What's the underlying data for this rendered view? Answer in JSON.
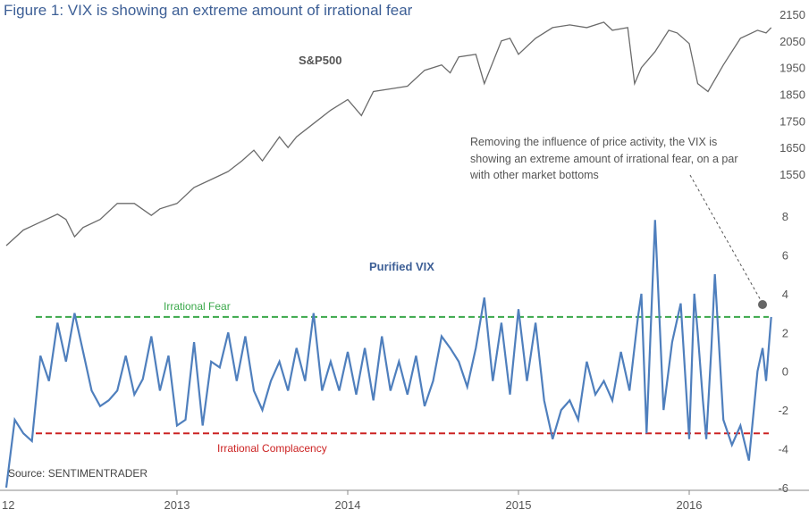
{
  "title": "Figure 1: VIX is showing an extreme amount of irrational fear",
  "source": "Source: SENTIMENTRADER",
  "annotation": "Removing the influence of price activity, the VIX is showing an extreme amount of irrational fear, on a par with other market bottoms",
  "colors": {
    "title": "#3d5f96",
    "spx_line": "#6b6b6b",
    "vix_line": "#4f7fbd",
    "fear_line": "#3aa84a",
    "complacency_line": "#cc2222",
    "marker": "#666666"
  },
  "chart_data": [
    {
      "type": "line",
      "name": "S&P500",
      "label": "S&P500",
      "y_axis_ticks": [
        "2150",
        "2050",
        "1950",
        "1850",
        "1750",
        "1650",
        "1550"
      ],
      "x": [
        2012.0,
        2012.1,
        2012.2,
        2012.3,
        2012.35,
        2012.4,
        2012.45,
        2012.55,
        2012.65,
        2012.75,
        2012.85,
        2012.9,
        2013.0,
        2013.1,
        2013.2,
        2013.3,
        2013.38,
        2013.45,
        2013.5,
        2013.6,
        2013.65,
        2013.7,
        2013.8,
        2013.9,
        2014.0,
        2014.08,
        2014.15,
        2014.25,
        2014.35,
        2014.45,
        2014.55,
        2014.6,
        2014.65,
        2014.75,
        2014.8,
        2014.9,
        2014.95,
        2015.0,
        2015.1,
        2015.2,
        2015.3,
        2015.4,
        2015.5,
        2015.55,
        2015.64,
        2015.68,
        2015.72,
        2015.8,
        2015.88,
        2015.93,
        2016.0,
        2016.05,
        2016.11,
        2016.2,
        2016.3,
        2016.4,
        2016.45,
        2016.48
      ],
      "values": [
        1282,
        1340,
        1370,
        1400,
        1380,
        1315,
        1350,
        1380,
        1440,
        1440,
        1395,
        1420,
        1440,
        1500,
        1530,
        1560,
        1600,
        1640,
        1600,
        1690,
        1650,
        1690,
        1740,
        1790,
        1830,
        1770,
        1860,
        1870,
        1880,
        1940,
        1960,
        1930,
        1990,
        2000,
        1890,
        2050,
        2060,
        2000,
        2060,
        2100,
        2110,
        2100,
        2120,
        2090,
        2100,
        1890,
        1950,
        2010,
        2090,
        2080,
        2040,
        1890,
        1860,
        1960,
        2060,
        2090,
        2080,
        2100
      ]
    },
    {
      "type": "line",
      "name": "Purified VIX",
      "label": "Purified VIX",
      "y_axis_ticks": [
        8,
        6,
        4,
        2,
        0,
        -2,
        -4,
        -6
      ],
      "ylim": [
        -6,
        8
      ],
      "x_ticks": [
        "12",
        "2013",
        "2014",
        "2015",
        "2016"
      ],
      "x": [
        2012.0,
        2012.05,
        2012.1,
        2012.15,
        2012.2,
        2012.25,
        2012.3,
        2012.35,
        2012.4,
        2012.45,
        2012.5,
        2012.55,
        2012.6,
        2012.65,
        2012.7,
        2012.75,
        2012.8,
        2012.85,
        2012.9,
        2012.95,
        2013.0,
        2013.05,
        2013.1,
        2013.15,
        2013.2,
        2013.25,
        2013.3,
        2013.35,
        2013.4,
        2013.45,
        2013.5,
        2013.55,
        2013.6,
        2013.65,
        2013.7,
        2013.75,
        2013.8,
        2013.85,
        2013.9,
        2013.95,
        2014.0,
        2014.05,
        2014.1,
        2014.15,
        2014.2,
        2014.25,
        2014.3,
        2014.35,
        2014.4,
        2014.45,
        2014.5,
        2014.55,
        2014.6,
        2014.65,
        2014.7,
        2014.75,
        2014.8,
        2014.85,
        2014.9,
        2014.95,
        2015.0,
        2015.05,
        2015.1,
        2015.15,
        2015.2,
        2015.25,
        2015.3,
        2015.35,
        2015.4,
        2015.45,
        2015.5,
        2015.55,
        2015.6,
        2015.65,
        2015.7,
        2015.72,
        2015.75,
        2015.8,
        2015.85,
        2015.9,
        2015.95,
        2016.0,
        2016.03,
        2016.05,
        2016.08,
        2016.1,
        2016.13,
        2016.15,
        2016.2,
        2016.25,
        2016.3,
        2016.35,
        2016.4,
        2016.43,
        2016.45,
        2016.48
      ],
      "values": [
        -6.0,
        -2.5,
        -3.2,
        -3.6,
        0.8,
        -0.5,
        2.5,
        0.5,
        3.0,
        1.0,
        -1.0,
        -1.8,
        -1.5,
        -1.0,
        0.8,
        -1.2,
        -0.4,
        1.8,
        -1.0,
        0.8,
        -2.8,
        -2.5,
        1.5,
        -2.8,
        0.5,
        0.2,
        2.0,
        -0.5,
        1.8,
        -1.0,
        -2.0,
        -0.5,
        0.5,
        -1.0,
        1.2,
        -0.5,
        3.0,
        -1.0,
        0.5,
        -1.0,
        1.0,
        -1.2,
        1.2,
        -1.5,
        1.8,
        -1.0,
        0.5,
        -1.2,
        0.8,
        -1.8,
        -0.5,
        1.8,
        1.2,
        0.5,
        -0.8,
        1.2,
        3.8,
        -0.5,
        2.5,
        -1.2,
        3.2,
        -0.5,
        2.5,
        -1.5,
        -3.5,
        -2.0,
        -1.5,
        -2.5,
        0.5,
        -1.2,
        -0.5,
        -1.5,
        1.0,
        -1.0,
        2.8,
        4.0,
        -3.2,
        7.8,
        -2.0,
        1.5,
        3.5,
        -3.5,
        4.0,
        2.0,
        -1.5,
        -3.5,
        1.2,
        5.0,
        -2.5,
        -3.8,
        -2.8,
        -4.6,
        0.0,
        1.2,
        -0.5,
        2.8
      ]
    }
  ],
  "reference_lines": {
    "fear": {
      "label": "Irrational Fear",
      "value": 2.8
    },
    "complacency": {
      "label": "Irrational Complacency",
      "value": -3.2
    }
  }
}
